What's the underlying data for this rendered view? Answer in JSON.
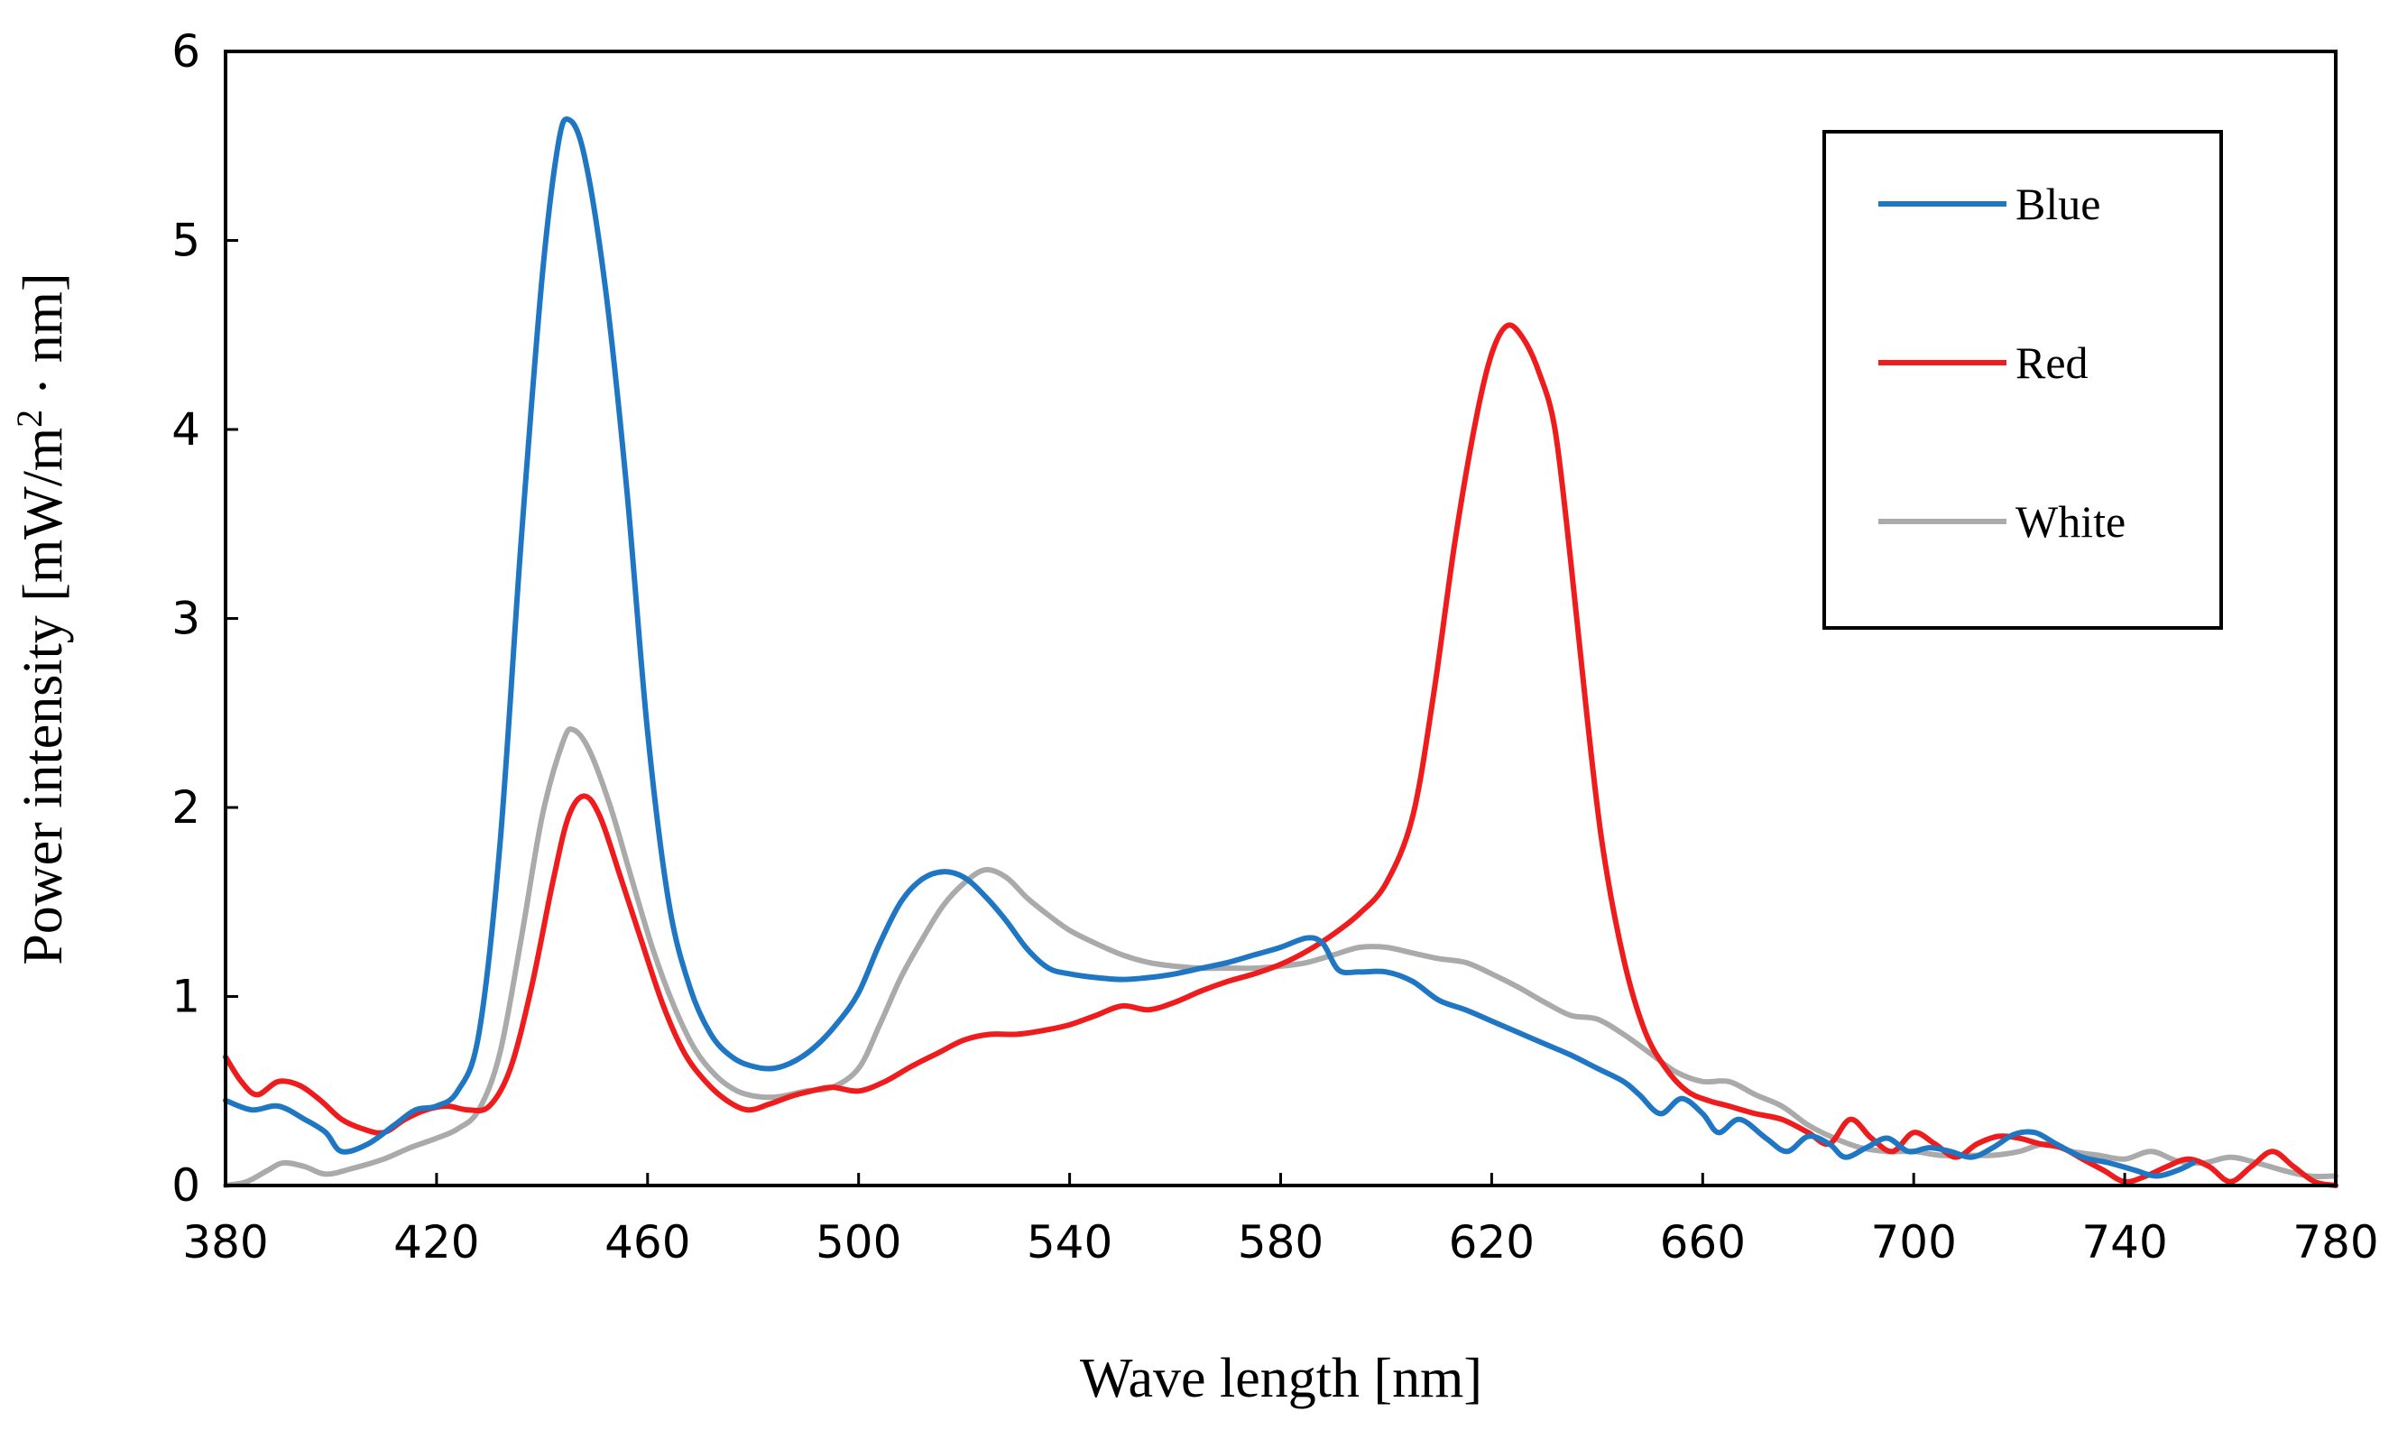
{
  "chart_data": {
    "type": "line",
    "title": "",
    "xlabel": "Wave length [nm]",
    "ylabel_main": "Power intensity [mW/m",
    "ylabel_sup": "2",
    "ylabel_end": " · nm]",
    "xlim": [
      380,
      780
    ],
    "ylim": [
      0,
      6
    ],
    "xticks": [
      380,
      420,
      460,
      500,
      540,
      580,
      620,
      660,
      700,
      740,
      780
    ],
    "yticks": [
      0,
      1,
      2,
      3,
      4,
      5,
      6
    ],
    "grid": false,
    "legend_position": "top-right",
    "series": [
      {
        "name": "Blue",
        "color": "#1f77c4",
        "points": [
          [
            380,
            0.45
          ],
          [
            385,
            0.4
          ],
          [
            390,
            0.42
          ],
          [
            395,
            0.35
          ],
          [
            399,
            0.28
          ],
          [
            402,
            0.18
          ],
          [
            407,
            0.22
          ],
          [
            412,
            0.32
          ],
          [
            416,
            0.4
          ],
          [
            420,
            0.42
          ],
          [
            424,
            0.5
          ],
          [
            428,
            0.8
          ],
          [
            432,
            1.8
          ],
          [
            436,
            3.4
          ],
          [
            440,
            4.8
          ],
          [
            443,
            5.5
          ],
          [
            445,
            5.64
          ],
          [
            448,
            5.45
          ],
          [
            452,
            4.75
          ],
          [
            456,
            3.7
          ],
          [
            460,
            2.4
          ],
          [
            464,
            1.5
          ],
          [
            468,
            1.05
          ],
          [
            472,
            0.8
          ],
          [
            476,
            0.68
          ],
          [
            480,
            0.63
          ],
          [
            484,
            0.62
          ],
          [
            488,
            0.66
          ],
          [
            492,
            0.74
          ],
          [
            496,
            0.86
          ],
          [
            500,
            1.02
          ],
          [
            504,
            1.28
          ],
          [
            508,
            1.5
          ],
          [
            512,
            1.62
          ],
          [
            516,
            1.66
          ],
          [
            520,
            1.63
          ],
          [
            524,
            1.53
          ],
          [
            528,
            1.4
          ],
          [
            532,
            1.25
          ],
          [
            536,
            1.15
          ],
          [
            540,
            1.12
          ],
          [
            545,
            1.1
          ],
          [
            550,
            1.09
          ],
          [
            555,
            1.1
          ],
          [
            560,
            1.12
          ],
          [
            565,
            1.15
          ],
          [
            570,
            1.18
          ],
          [
            575,
            1.22
          ],
          [
            580,
            1.26
          ],
          [
            585,
            1.31
          ],
          [
            588,
            1.28
          ],
          [
            591,
            1.14
          ],
          [
            595,
            1.13
          ],
          [
            600,
            1.13
          ],
          [
            605,
            1.08
          ],
          [
            610,
            0.98
          ],
          [
            615,
            0.93
          ],
          [
            620,
            0.87
          ],
          [
            625,
            0.81
          ],
          [
            630,
            0.75
          ],
          [
            635,
            0.69
          ],
          [
            640,
            0.62
          ],
          [
            645,
            0.55
          ],
          [
            648,
            0.48
          ],
          [
            652,
            0.38
          ],
          [
            656,
            0.46
          ],
          [
            660,
            0.38
          ],
          [
            663,
            0.28
          ],
          [
            667,
            0.35
          ],
          [
            672,
            0.25
          ],
          [
            676,
            0.18
          ],
          [
            680,
            0.26
          ],
          [
            684,
            0.22
          ],
          [
            687,
            0.15
          ],
          [
            691,
            0.2
          ],
          [
            695,
            0.25
          ],
          [
            699,
            0.18
          ],
          [
            703,
            0.2
          ],
          [
            707,
            0.18
          ],
          [
            711,
            0.15
          ],
          [
            715,
            0.2
          ],
          [
            719,
            0.27
          ],
          [
            723,
            0.28
          ],
          [
            727,
            0.22
          ],
          [
            732,
            0.15
          ],
          [
            737,
            0.12
          ],
          [
            742,
            0.08
          ],
          [
            746,
            0.05
          ],
          [
            750,
            0.08
          ],
          [
            753,
            0.12
          ]
        ]
      },
      {
        "name": "Red",
        "color": "#ee1c1c",
        "points": [
          [
            380,
            0.68
          ],
          [
            383,
            0.55
          ],
          [
            386,
            0.48
          ],
          [
            390,
            0.55
          ],
          [
            394,
            0.53
          ],
          [
            398,
            0.45
          ],
          [
            402,
            0.35
          ],
          [
            406,
            0.3
          ],
          [
            410,
            0.28
          ],
          [
            414,
            0.35
          ],
          [
            418,
            0.4
          ],
          [
            422,
            0.42
          ],
          [
            426,
            0.4
          ],
          [
            430,
            0.42
          ],
          [
            434,
            0.62
          ],
          [
            438,
            1.05
          ],
          [
            442,
            1.6
          ],
          [
            445,
            1.95
          ],
          [
            448,
            2.06
          ],
          [
            451,
            1.95
          ],
          [
            455,
            1.62
          ],
          [
            459,
            1.28
          ],
          [
            463,
            0.95
          ],
          [
            467,
            0.7
          ],
          [
            471,
            0.55
          ],
          [
            475,
            0.45
          ],
          [
            479,
            0.4
          ],
          [
            483,
            0.43
          ],
          [
            487,
            0.47
          ],
          [
            491,
            0.5
          ],
          [
            495,
            0.52
          ],
          [
            500,
            0.5
          ],
          [
            505,
            0.55
          ],
          [
            510,
            0.63
          ],
          [
            515,
            0.7
          ],
          [
            520,
            0.77
          ],
          [
            525,
            0.8
          ],
          [
            530,
            0.8
          ],
          [
            535,
            0.82
          ],
          [
            540,
            0.85
          ],
          [
            545,
            0.9
          ],
          [
            550,
            0.95
          ],
          [
            555,
            0.93
          ],
          [
            560,
            0.97
          ],
          [
            565,
            1.03
          ],
          [
            570,
            1.08
          ],
          [
            575,
            1.12
          ],
          [
            580,
            1.17
          ],
          [
            585,
            1.24
          ],
          [
            590,
            1.33
          ],
          [
            595,
            1.44
          ],
          [
            600,
            1.6
          ],
          [
            605,
            1.95
          ],
          [
            609,
            2.6
          ],
          [
            613,
            3.4
          ],
          [
            617,
            4.05
          ],
          [
            620,
            4.4
          ],
          [
            623,
            4.55
          ],
          [
            626,
            4.48
          ],
          [
            629,
            4.3
          ],
          [
            632,
            4.0
          ],
          [
            635,
            3.3
          ],
          [
            638,
            2.5
          ],
          [
            641,
            1.8
          ],
          [
            645,
            1.2
          ],
          [
            649,
            0.82
          ],
          [
            653,
            0.62
          ],
          [
            657,
            0.5
          ],
          [
            661,
            0.45
          ],
          [
            665,
            0.42
          ],
          [
            670,
            0.38
          ],
          [
            675,
            0.35
          ],
          [
            680,
            0.28
          ],
          [
            684,
            0.22
          ],
          [
            688,
            0.35
          ],
          [
            692,
            0.25
          ],
          [
            696,
            0.18
          ],
          [
            700,
            0.28
          ],
          [
            704,
            0.22
          ],
          [
            708,
            0.15
          ],
          [
            712,
            0.22
          ],
          [
            716,
            0.26
          ],
          [
            720,
            0.25
          ],
          [
            724,
            0.22
          ],
          [
            728,
            0.2
          ],
          [
            732,
            0.14
          ],
          [
            736,
            0.08
          ],
          [
            740,
            0.02
          ],
          [
            744,
            0.05
          ],
          [
            748,
            0.1
          ],
          [
            752,
            0.14
          ],
          [
            756,
            0.1
          ],
          [
            760,
            0.02
          ],
          [
            764,
            0.1
          ],
          [
            768,
            0.18
          ],
          [
            772,
            0.1
          ],
          [
            776,
            0.02
          ],
          [
            780,
            0.0
          ]
        ]
      },
      {
        "name": "White",
        "color": "#aaaaaa",
        "points": [
          [
            380,
            0.0
          ],
          [
            384,
            0.02
          ],
          [
            388,
            0.08
          ],
          [
            391,
            0.12
          ],
          [
            395,
            0.1
          ],
          [
            399,
            0.06
          ],
          [
            404,
            0.09
          ],
          [
            410,
            0.14
          ],
          [
            415,
            0.2
          ],
          [
            420,
            0.25
          ],
          [
            424,
            0.3
          ],
          [
            428,
            0.4
          ],
          [
            432,
            0.7
          ],
          [
            436,
            1.3
          ],
          [
            440,
            1.95
          ],
          [
            444,
            2.35
          ],
          [
            446,
            2.41
          ],
          [
            449,
            2.3
          ],
          [
            453,
            2.0
          ],
          [
            457,
            1.62
          ],
          [
            461,
            1.25
          ],
          [
            465,
            0.95
          ],
          [
            469,
            0.72
          ],
          [
            473,
            0.58
          ],
          [
            477,
            0.5
          ],
          [
            481,
            0.47
          ],
          [
            485,
            0.47
          ],
          [
            490,
            0.5
          ],
          [
            495,
            0.52
          ],
          [
            500,
            0.62
          ],
          [
            504,
            0.85
          ],
          [
            508,
            1.1
          ],
          [
            512,
            1.3
          ],
          [
            516,
            1.48
          ],
          [
            520,
            1.6
          ],
          [
            524,
            1.67
          ],
          [
            528,
            1.63
          ],
          [
            532,
            1.52
          ],
          [
            536,
            1.43
          ],
          [
            540,
            1.35
          ],
          [
            545,
            1.28
          ],
          [
            550,
            1.22
          ],
          [
            555,
            1.18
          ],
          [
            560,
            1.16
          ],
          [
            565,
            1.15
          ],
          [
            570,
            1.15
          ],
          [
            575,
            1.15
          ],
          [
            580,
            1.16
          ],
          [
            585,
            1.18
          ],
          [
            590,
            1.22
          ],
          [
            595,
            1.26
          ],
          [
            600,
            1.26
          ],
          [
            605,
            1.23
          ],
          [
            610,
            1.2
          ],
          [
            615,
            1.18
          ],
          [
            620,
            1.12
          ],
          [
            625,
            1.05
          ],
          [
            630,
            0.97
          ],
          [
            635,
            0.9
          ],
          [
            640,
            0.88
          ],
          [
            645,
            0.8
          ],
          [
            650,
            0.7
          ],
          [
            655,
            0.6
          ],
          [
            660,
            0.55
          ],
          [
            665,
            0.55
          ],
          [
            670,
            0.48
          ],
          [
            675,
            0.42
          ],
          [
            680,
            0.32
          ],
          [
            685,
            0.25
          ],
          [
            690,
            0.2
          ],
          [
            695,
            0.18
          ],
          [
            700,
            0.18
          ],
          [
            705,
            0.16
          ],
          [
            710,
            0.16
          ],
          [
            715,
            0.16
          ],
          [
            720,
            0.18
          ],
          [
            725,
            0.22
          ],
          [
            730,
            0.18
          ],
          [
            735,
            0.16
          ],
          [
            740,
            0.14
          ],
          [
            745,
            0.18
          ],
          [
            750,
            0.13
          ],
          [
            755,
            0.12
          ],
          [
            760,
            0.15
          ],
          [
            765,
            0.12
          ],
          [
            770,
            0.08
          ],
          [
            775,
            0.05
          ],
          [
            780,
            0.05
          ]
        ]
      }
    ]
  }
}
